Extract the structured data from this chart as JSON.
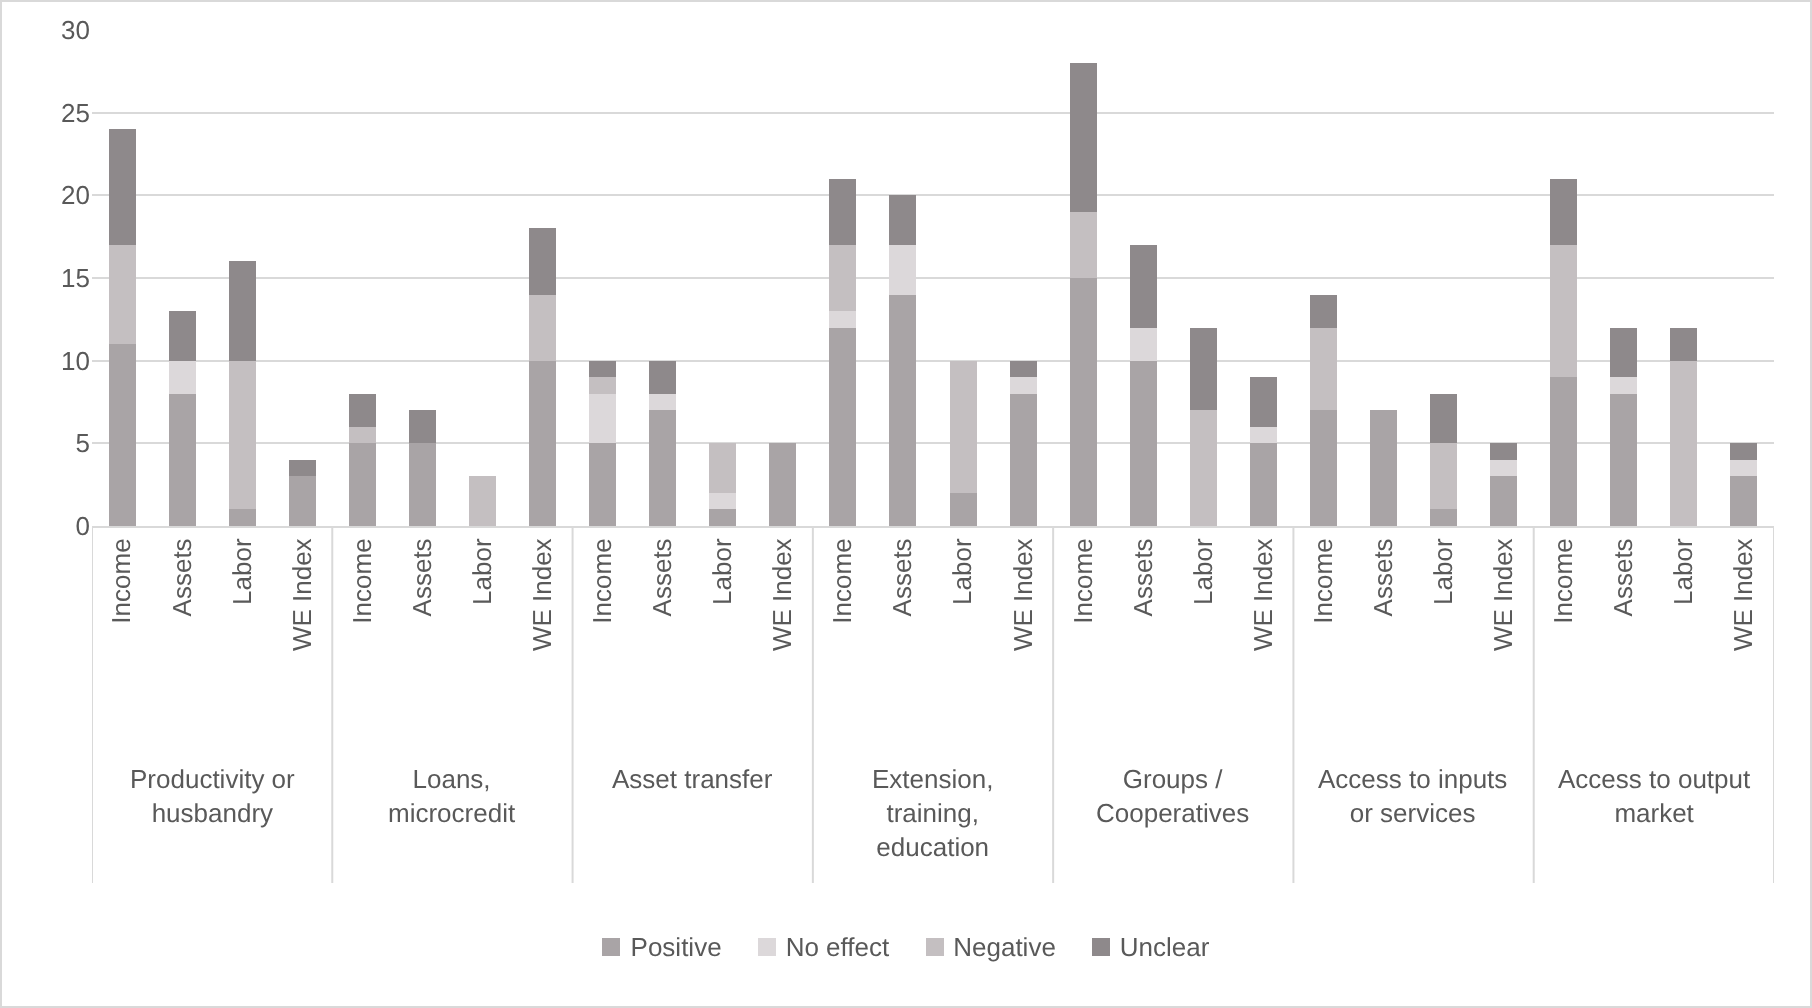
{
  "chart_data": {
    "type": "bar",
    "stacked": true,
    "grid": "y",
    "legend": "bottom",
    "categories": [
      "Income",
      "Assets",
      "Labor",
      "WE Index",
      "Income",
      "Assets",
      "Labor",
      "WE Index",
      "Income",
      "Assets",
      "Labor",
      "WE Index",
      "Income",
      "Assets",
      "Labor",
      "WE Index",
      "Income",
      "Assets",
      "Labor",
      "WE Index",
      "Income",
      "Assets",
      "Labor",
      "WE Index",
      "Income",
      "Assets",
      "Labor",
      "WE Index"
    ],
    "series": [
      {
        "name": "Positive",
        "color": "#a9a4a6",
        "values": [
          11,
          8,
          1,
          3,
          5,
          5,
          0,
          10,
          5,
          7,
          1,
          5,
          12,
          14,
          2,
          8,
          15,
          10,
          0,
          5,
          7,
          7,
          1,
          3,
          9,
          8,
          0,
          3
        ]
      },
      {
        "name": "No effect",
        "color": "#dcd8da",
        "values": [
          0,
          2,
          0,
          0,
          0,
          0,
          0,
          0,
          3,
          1,
          1,
          0,
          1,
          3,
          0,
          1,
          0,
          2,
          0,
          1,
          0,
          0,
          0,
          1,
          0,
          1,
          0,
          1
        ]
      },
      {
        "name": "Negative",
        "color": "#c4bfc1",
        "values": [
          6,
          0,
          9,
          0,
          1,
          0,
          3,
          4,
          1,
          0,
          3,
          0,
          4,
          0,
          8,
          0,
          4,
          0,
          7,
          0,
          5,
          0,
          4,
          0,
          8,
          0,
          10,
          0
        ]
      },
      {
        "name": "Unclear",
        "color": "#8e898b",
        "values": [
          7,
          3,
          6,
          1,
          2,
          2,
          0,
          4,
          1,
          2,
          0,
          0,
          4,
          3,
          0,
          1,
          9,
          5,
          5,
          3,
          2,
          0,
          3,
          1,
          4,
          3,
          2,
          1
        ]
      }
    ],
    "ylim": [
      0,
      30
    ],
    "yticks": [
      0,
      5,
      10,
      15,
      20,
      25,
      30
    ],
    "annotations": [
      "Productivity or\nhusbandry",
      "Loans,\nmicrocredit",
      "Asset transfer",
      "Extension,\ntraining,\neducation",
      "Groups /\nCooperatives",
      "Access to inputs\nor services",
      "Access to output\nmarket"
    ]
  }
}
